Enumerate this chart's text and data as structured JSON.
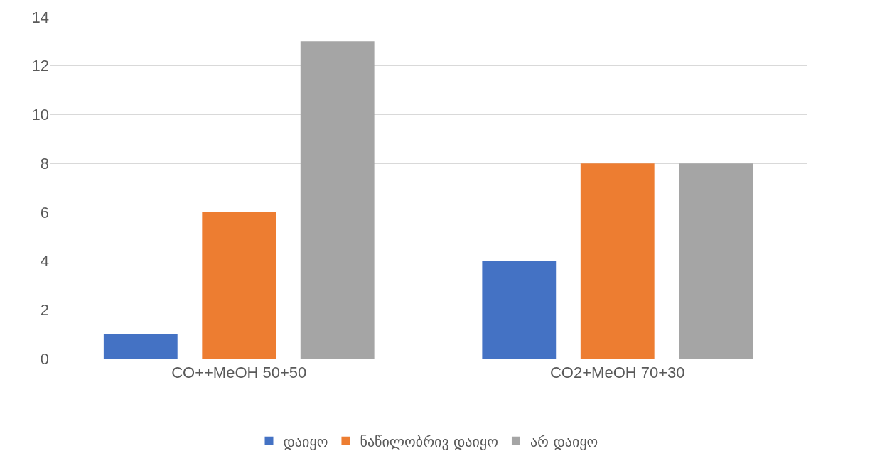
{
  "chart_data": {
    "type": "bar",
    "categories": [
      "CO++MeOH 50+50",
      "CO2+MeOH 70+30"
    ],
    "series": [
      {
        "name": "დაიყო",
        "color": "#4472c4",
        "values": [
          1,
          4
        ]
      },
      {
        "name": "ნაწილობრივ დაიყო",
        "color": "#ed7d31",
        "values": [
          6,
          8
        ]
      },
      {
        "name": "არ დაიყო",
        "color": "#a5a5a5",
        "values": [
          13,
          8
        ]
      }
    ],
    "ylim": [
      0,
      14
    ],
    "yticks": [
      0,
      2,
      4,
      6,
      8,
      10,
      12,
      14
    ],
    "grid": "y",
    "legend": "bottom"
  }
}
